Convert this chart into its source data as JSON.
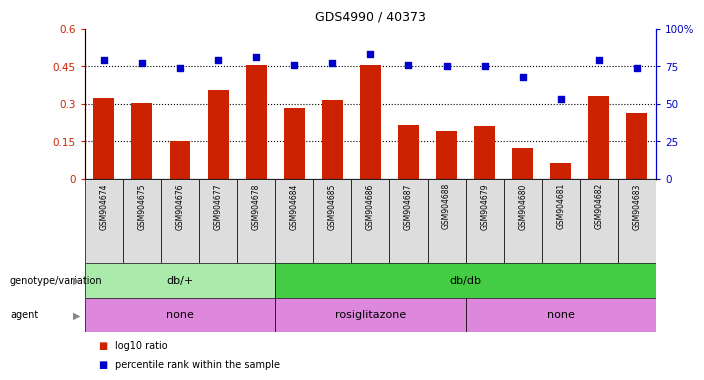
{
  "title": "GDS4990 / 40373",
  "samples": [
    "GSM904674",
    "GSM904675",
    "GSM904676",
    "GSM904677",
    "GSM904678",
    "GSM904684",
    "GSM904685",
    "GSM904686",
    "GSM904687",
    "GSM904688",
    "GSM904679",
    "GSM904680",
    "GSM904681",
    "GSM904682",
    "GSM904683"
  ],
  "log10_ratio": [
    0.325,
    0.305,
    0.152,
    0.355,
    0.455,
    0.285,
    0.315,
    0.455,
    0.215,
    0.19,
    0.21,
    0.125,
    0.065,
    0.33,
    0.265
  ],
  "percentile_rank": [
    79,
    77,
    74,
    79,
    81,
    76,
    77,
    83,
    76,
    75,
    75,
    68,
    53,
    79,
    74
  ],
  "bar_color": "#cc2200",
  "dot_color": "#0000cc",
  "ylim_left": [
    0,
    0.6
  ],
  "ylim_right": [
    0,
    100
  ],
  "yticks_left": [
    0,
    0.15,
    0.3,
    0.45,
    0.6
  ],
  "ytick_labels_left": [
    "0",
    "0.15",
    "0.3",
    "0.45",
    "0.6"
  ],
  "yticks_right": [
    0,
    25,
    50,
    75,
    100
  ],
  "ytick_labels_right": [
    "0",
    "25",
    "50",
    "75",
    "100%"
  ],
  "hlines": [
    0.15,
    0.3,
    0.45
  ],
  "genotype_groups": [
    {
      "label": "db/+",
      "start": 0,
      "end": 5,
      "color": "#aaeaaa"
    },
    {
      "label": "db/db",
      "start": 5,
      "end": 15,
      "color": "#44cc44"
    }
  ],
  "agent_groups": [
    {
      "label": "none",
      "start": 0,
      "end": 5,
      "color": "#dd88dd"
    },
    {
      "label": "rosiglitazone",
      "start": 5,
      "end": 10,
      "color": "#dd88dd"
    },
    {
      "label": "none",
      "start": 10,
      "end": 15,
      "color": "#dd88dd"
    }
  ],
  "legend_bar_label": "log10 ratio",
  "legend_dot_label": "percentile rank within the sample",
  "genotype_label": "genotype/variation",
  "agent_label": "agent",
  "bg_color": "#ffffff",
  "tick_label_color_left": "#cc2200",
  "tick_label_color_right": "#0000cc",
  "bar_width": 0.55,
  "xtick_bg": "#dddddd"
}
